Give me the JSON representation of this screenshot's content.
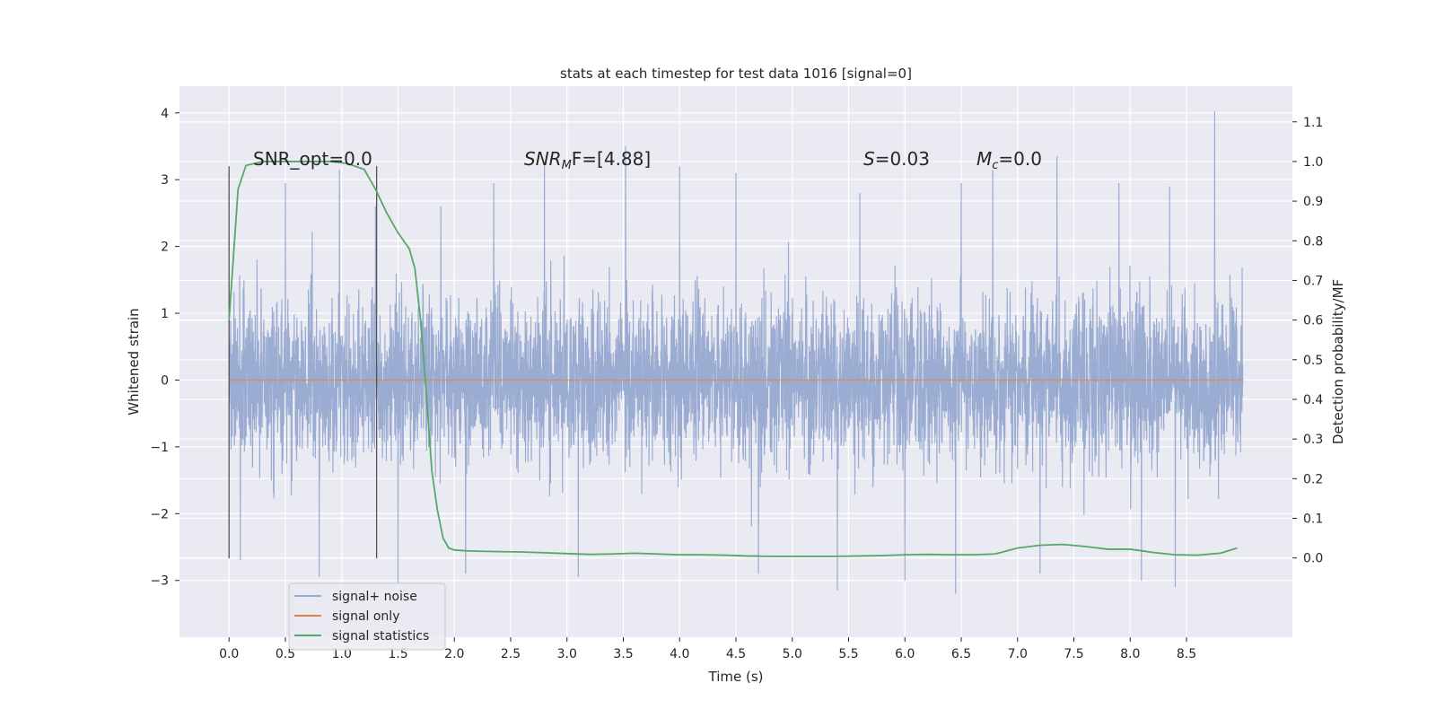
{
  "chart_data": {
    "type": "line",
    "title": "stats at each timestep for test data 1016 [signal=0]",
    "xlabel": "Time (s)",
    "ylabel": "Whitened strain",
    "ylabel_right": "Detection probability/MF",
    "xlim": [
      -0.44,
      9.44
    ],
    "ylim": [
      -3.85,
      4.4
    ],
    "ylim_right": [
      -0.2,
      1.19
    ],
    "xticks": [
      "0.0",
      "0.5",
      "1.0",
      "1.5",
      "2.0",
      "2.5",
      "3.0",
      "3.5",
      "4.0",
      "4.5",
      "5.0",
      "5.5",
      "6.0",
      "6.5",
      "7.0",
      "7.5",
      "8.0",
      "8.5"
    ],
    "yticks": [
      "4",
      "3",
      "2",
      "1",
      "0",
      "−1",
      "−2",
      "−3"
    ],
    "yticks_right": [
      "1.1",
      "1.0",
      "0.9",
      "0.8",
      "0.7",
      "0.6",
      "0.5",
      "0.4",
      "0.3",
      "0.2",
      "0.1",
      "0.0"
    ],
    "annotations": {
      "snr_opt": "SNR_opt=0.0",
      "snr_mf_base": "SNR",
      "snr_mf_sub": "M",
      "snr_mf_rest": "F=[4.88]",
      "s_base": "S",
      "s_rest": "=0.03",
      "mc_base": "M",
      "mc_sub": "c",
      "mc_rest": "=0.0"
    },
    "vlines": [
      0.0,
      1.31
    ],
    "vline_range": [
      -2.67,
      3.2
    ],
    "series": [
      {
        "name": "signal+ noise",
        "color": "#97a9d0",
        "x_range": [
          0.0,
          9.0
        ],
        "band_typical": [
          -1.9,
          1.9
        ],
        "extremes": [
          -3.2,
          4.02
        ],
        "peaks": [
          [
            0.5,
            2.95
          ],
          [
            0.98,
            3.15
          ],
          [
            1.3,
            2.6
          ],
          [
            1.88,
            2.6
          ],
          [
            2.35,
            2.95
          ],
          [
            2.8,
            3.25
          ],
          [
            3.52,
            3.5
          ],
          [
            4.0,
            3.2
          ],
          [
            4.5,
            3.1
          ],
          [
            5.6,
            2.8
          ],
          [
            6.0,
            2.75
          ],
          [
            6.5,
            2.95
          ],
          [
            6.78,
            3.15
          ],
          [
            7.35,
            3.35
          ],
          [
            7.9,
            2.95
          ],
          [
            8.35,
            2.9
          ],
          [
            8.75,
            4.02
          ]
        ],
        "troughs": [
          [
            0.1,
            -2.7
          ],
          [
            0.8,
            -2.95
          ],
          [
            1.5,
            -3.05
          ],
          [
            2.1,
            -2.9
          ],
          [
            3.1,
            -2.95
          ],
          [
            4.7,
            -2.9
          ],
          [
            5.4,
            -3.15
          ],
          [
            6.0,
            -3.0
          ],
          [
            6.45,
            -3.2
          ],
          [
            7.2,
            -2.9
          ],
          [
            8.1,
            -3.0
          ],
          [
            8.4,
            -3.1
          ]
        ]
      },
      {
        "name": "signal only",
        "color": "#dd8452",
        "x": [
          0.0,
          9.0
        ],
        "y": [
          0.0,
          0.0
        ]
      },
      {
        "name": "signal statistics",
        "color": "#55a868",
        "axis": "right",
        "x": [
          0.0,
          0.08,
          0.15,
          0.3,
          0.5,
          0.7,
          0.9,
          1.05,
          1.2,
          1.3,
          1.4,
          1.5,
          1.6,
          1.65,
          1.7,
          1.75,
          1.8,
          1.85,
          1.9,
          1.95,
          2.0,
          2.1,
          2.2,
          2.4,
          2.6,
          2.8,
          3.0,
          3.2,
          3.4,
          3.6,
          3.8,
          4.0,
          4.2,
          4.4,
          4.6,
          4.8,
          5.0,
          5.2,
          5.4,
          5.6,
          5.8,
          6.0,
          6.2,
          6.4,
          6.6,
          6.8,
          7.0,
          7.2,
          7.4,
          7.6,
          7.8,
          8.0,
          8.2,
          8.4,
          8.6,
          8.8,
          8.95
        ],
        "y": [
          0.6,
          0.93,
          0.99,
          1.0,
          1.0,
          1.0,
          1.0,
          0.995,
          0.98,
          0.93,
          0.87,
          0.82,
          0.78,
          0.73,
          0.6,
          0.42,
          0.22,
          0.12,
          0.05,
          0.025,
          0.02,
          0.018,
          0.017,
          0.016,
          0.015,
          0.013,
          0.011,
          0.009,
          0.01,
          0.012,
          0.01,
          0.008,
          0.008,
          0.007,
          0.005,
          0.004,
          0.004,
          0.004,
          0.004,
          0.005,
          0.006,
          0.008,
          0.009,
          0.008,
          0.008,
          0.01,
          0.025,
          0.032,
          0.034,
          0.029,
          0.022,
          0.022,
          0.014,
          0.008,
          0.007,
          0.012,
          0.025
        ]
      }
    ],
    "legend": {
      "location": "lower-left",
      "items": [
        "signal+ noise",
        "signal only",
        "signal statistics"
      ]
    }
  }
}
